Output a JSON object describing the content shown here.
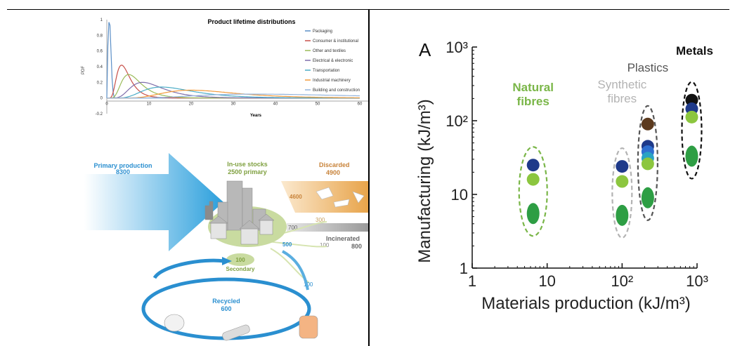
{
  "left_chart": {
    "title": "Product lifetime distributions",
    "xlabel": "Years",
    "ylabel": "PDF",
    "y_ticks": [
      "1",
      "0.8",
      "0.6",
      "0.4",
      "0.2",
      "0",
      "-0.2"
    ],
    "x_ticks": [
      "0",
      "10",
      "20",
      "30",
      "40",
      "50",
      "60"
    ],
    "legend": [
      {
        "name": "Packaging",
        "color": "#5b8fc7"
      },
      {
        "name": "Consumer & institutional",
        "color": "#c8504a"
      },
      {
        "name": "Other and textiles",
        "color": "#9bbb59"
      },
      {
        "name": "Electrical & electronic",
        "color": "#7f6eaa"
      },
      {
        "name": "Transportation",
        "color": "#4bacc6"
      },
      {
        "name": "Industrial machinery",
        "color": "#f39a3b"
      },
      {
        "name": "Building and construction",
        "color": "#94b4dc"
      }
    ]
  },
  "flow": {
    "primary_label": "Primary production",
    "primary_value": "8300",
    "stocks_label": "In-use stocks",
    "stocks_value": "2500 primary",
    "discarded_label": "Discarded",
    "discarded_value": "4900",
    "v4600": "4600",
    "v300": "300",
    "v700": "700",
    "v100a": "100",
    "incinerated_label": "Incinerated",
    "incinerated_value": "800",
    "v500": "500",
    "secondary_value": "100",
    "secondary_label": "Secondary",
    "v100b": "100",
    "recycled_label": "Recycled",
    "recycled_value": "600",
    "colors": {
      "blue": "#2a8fd0",
      "orange": "#e8a44a",
      "green": "#c9dba0",
      "gray": "#9a9a9a"
    }
  },
  "chart_data": {
    "type": "scatter",
    "panel_label": "A",
    "xlabel": "Materials production (kJ/m³)",
    "ylabel": "Manufacturing (kJ/m³)",
    "xscale": "log",
    "yscale": "log",
    "xlim": [
      1,
      1000
    ],
    "ylim": [
      1,
      1000
    ],
    "x_ticks": [
      "1",
      "10",
      "10²",
      "10³"
    ],
    "y_ticks": [
      "1",
      "10",
      "10²",
      "10³"
    ],
    "groups": [
      {
        "name": "Natural fibres",
        "color": "#7ab648",
        "points": [
          {
            "x": 6.5,
            "y": 25,
            "color": "#1f3a8a"
          },
          {
            "x": 6.5,
            "y": 16,
            "color": "#8cc63f"
          },
          {
            "x": 6.5,
            "y": 5.5,
            "color": "#2e9e44"
          }
        ]
      },
      {
        "name": "Synthetic fibres",
        "color": "#b3b3b3",
        "points": [
          {
            "x": 100,
            "y": 24,
            "color": "#1f3a8a"
          },
          {
            "x": 100,
            "y": 15,
            "color": "#8cc63f"
          },
          {
            "x": 100,
            "y": 5.2,
            "color": "#2e9e44"
          }
        ]
      },
      {
        "name": "Plastics",
        "color": "#555555",
        "points": [
          {
            "x": 220,
            "y": 90,
            "color": "#5c3a1e"
          },
          {
            "x": 220,
            "y": 45,
            "color": "#1f3a8a"
          },
          {
            "x": 220,
            "y": 38,
            "color": "#2f6fd0"
          },
          {
            "x": 220,
            "y": 31,
            "color": "#29a3c4"
          },
          {
            "x": 220,
            "y": 26,
            "color": "#8cc63f"
          },
          {
            "x": 220,
            "y": 9,
            "color": "#2e9e44"
          }
        ]
      },
      {
        "name": "Metals",
        "color": "#111111",
        "points": [
          {
            "x": 850,
            "y": 190,
            "color": "#111111"
          },
          {
            "x": 850,
            "y": 145,
            "color": "#1f3a8a"
          },
          {
            "x": 850,
            "y": 112,
            "color": "#8cc63f"
          },
          {
            "x": 850,
            "y": 33,
            "color": "#2e9e44"
          }
        ]
      }
    ]
  }
}
